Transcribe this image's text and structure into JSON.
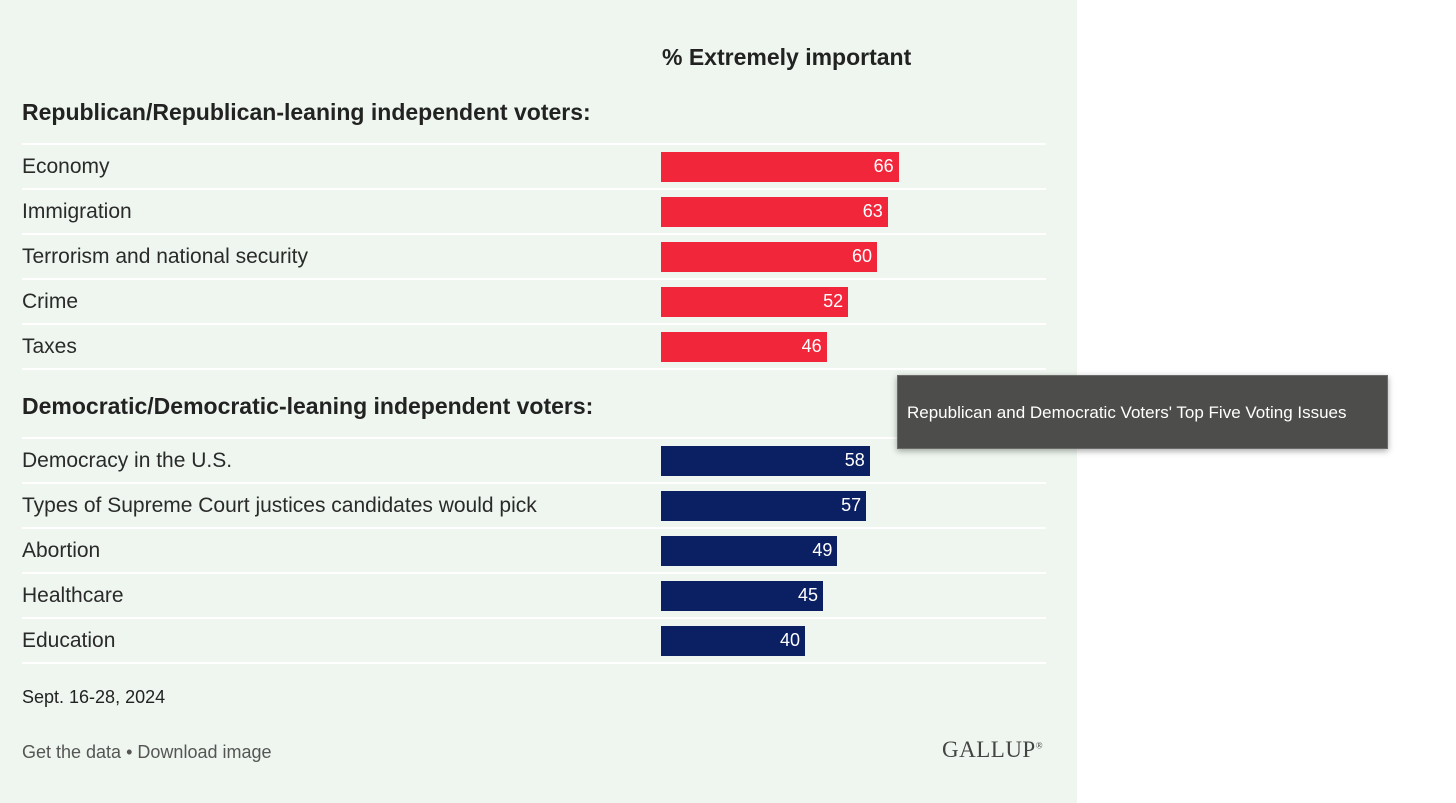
{
  "chart_data": {
    "type": "bar",
    "orientation": "horizontal",
    "value_header": "% Extremely important",
    "xlim": [
      0,
      100
    ],
    "grid": false,
    "groups": [
      {
        "title": "Republican/Republican-leaning independent voters:",
        "color": "#f2263a",
        "categories": [
          "Economy",
          "Immigration",
          "Terrorism and national security",
          "Crime",
          "Taxes"
        ],
        "values": [
          66,
          63,
          60,
          52,
          46
        ]
      },
      {
        "title": "Democratic/Democratic-leaning independent voters:",
        "color": "#0b1f63",
        "categories": [
          "Democracy in the U.S.",
          "Types of Supreme Court justices candidates would pick",
          "Abortion",
          "Healthcare",
          "Education"
        ],
        "values": [
          58,
          57,
          49,
          45,
          40
        ]
      }
    ]
  },
  "footer": {
    "date": "Sept. 16-28, 2024",
    "get_data": "Get the data",
    "separator": "•",
    "download": "Download image",
    "brand": "GALLUP",
    "brand_mark": "®"
  },
  "tooltip": {
    "text": "Republican and Democratic Voters' Top Five Voting Issues"
  }
}
